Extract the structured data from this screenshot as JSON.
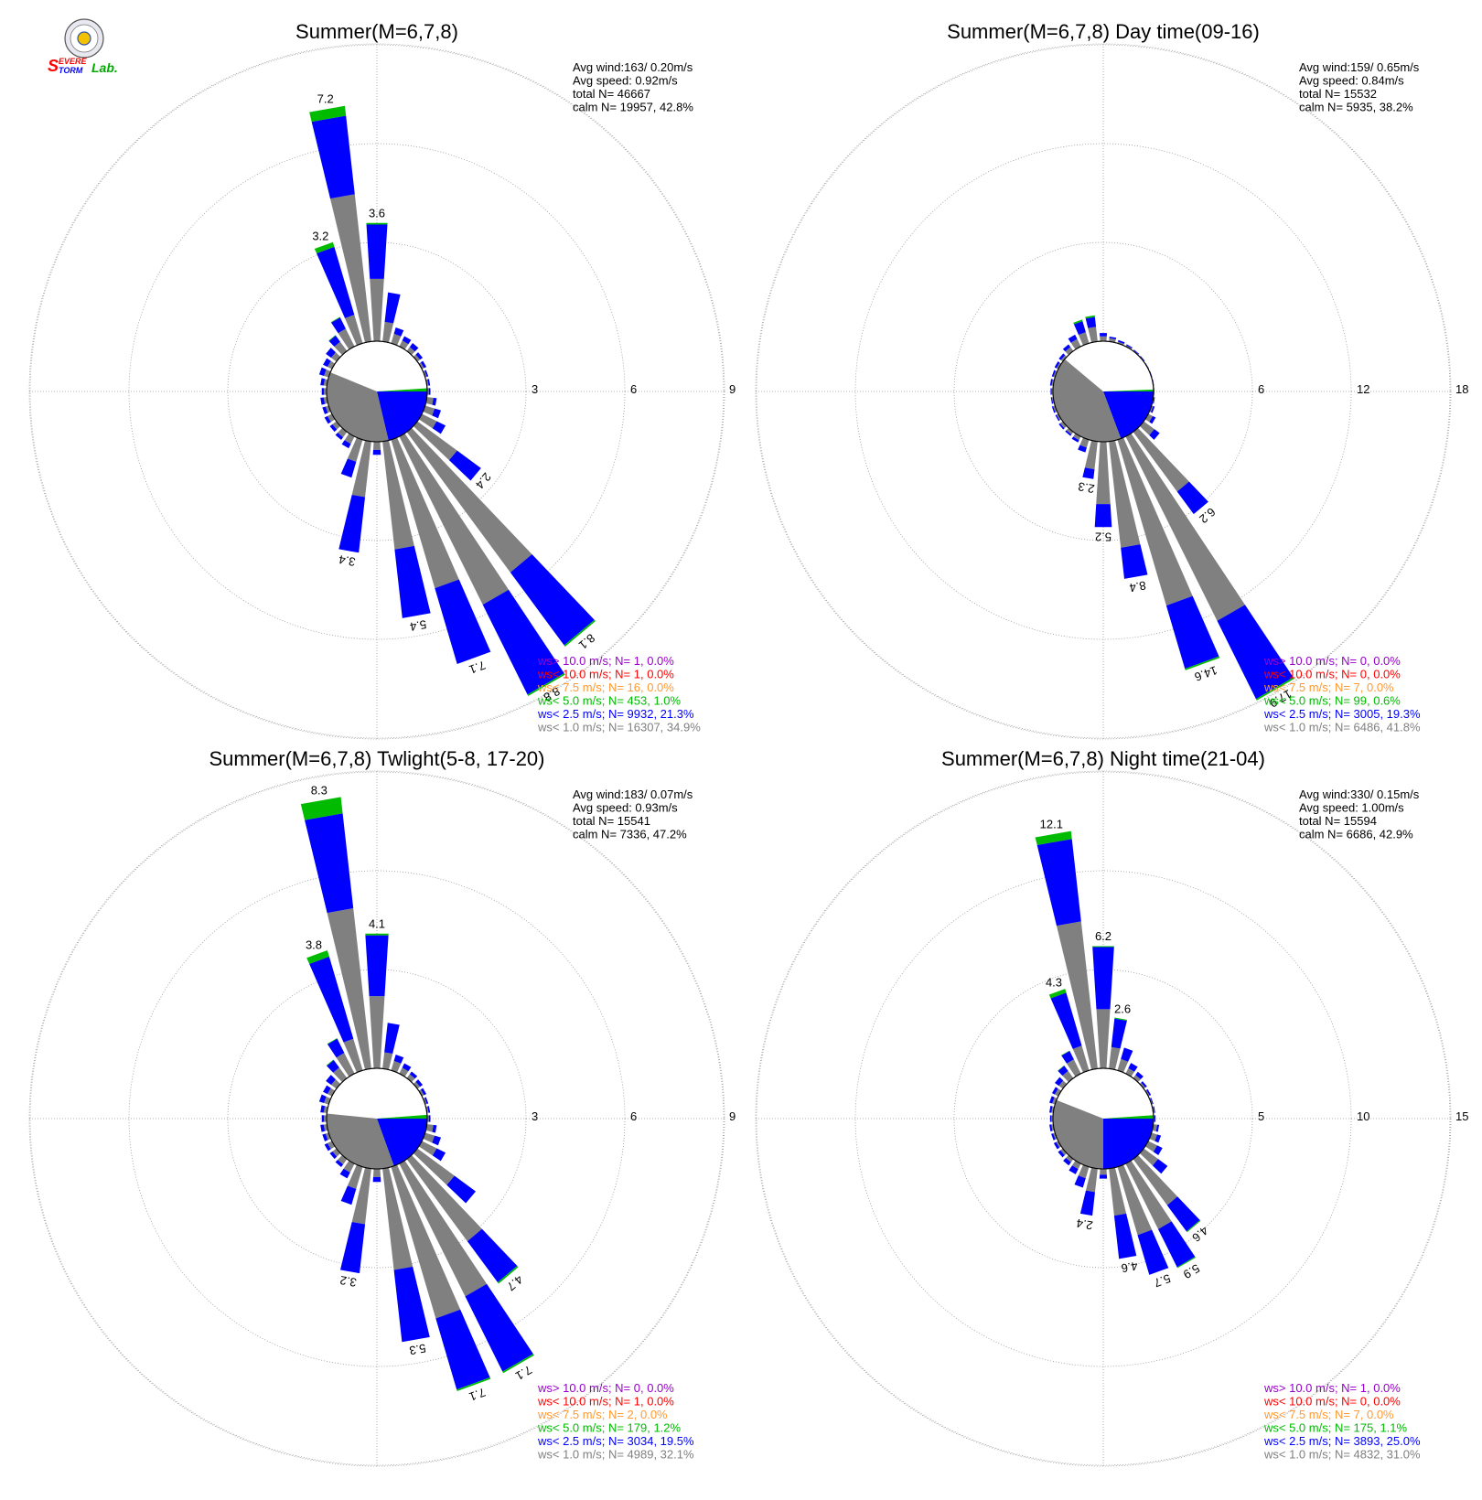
{
  "logo": {
    "text_s": "S",
    "text_severe": "EVERE",
    "text_storm": "TORM",
    "text_lab": "Lab."
  },
  "colors": {
    "calm_white": "#ffffff",
    "lt1": "#808080",
    "lt2_5": "#0000ff",
    "lt5": "#00bb00",
    "lt7_5": "#ff9933",
    "lt10": "#ff0000",
    "gt10": "#9900cc"
  },
  "chart_data": [
    {
      "type": "wind_rose",
      "title": "Summer(M=6,7,8)",
      "info": [
        "Avg wind:163/ 0.20m/s",
        "Avg speed: 0.92m/s",
        "total N=       46667",
        "calm N=  19957,  42.8%"
      ],
      "rings": [
        3,
        6,
        9
      ],
      "ring_labels": [
        "3",
        "6",
        "9"
      ],
      "calm_pct": 42.8,
      "calm_pie": {
        "lt1": 34.9,
        "lt2_5": 21.3,
        "lt5": 1.0
      },
      "directions_deg": [
        340,
        350,
        0,
        10,
        20,
        30,
        40,
        50,
        60,
        70,
        80,
        90,
        100,
        110,
        120,
        130,
        140,
        150,
        160,
        170,
        180,
        190,
        200,
        210,
        220,
        230,
        240,
        250,
        260,
        270,
        280,
        290,
        300,
        310,
        320,
        330
      ],
      "sector_totals": [
        3.2,
        7.2,
        3.6,
        1.5,
        0.5,
        0.35,
        0.3,
        0.2,
        0.15,
        0.1,
        0.1,
        0.1,
        0.3,
        0.5,
        0.8,
        2.4,
        8.1,
        8.8,
        7.1,
        5.4,
        0.4,
        3.4,
        1.2,
        0.4,
        0.3,
        0.25,
        0.25,
        0.2,
        0.2,
        0.15,
        0.2,
        0.3,
        0.3,
        0.4,
        0.6,
        1.0
      ],
      "sector_gray": [
        0.9,
        4.5,
        1.9,
        0.6,
        0.3,
        0.2,
        0.15,
        0.1,
        0.07,
        0.05,
        0.05,
        0.05,
        0.2,
        0.3,
        0.5,
        1.5,
        5.3,
        5.7,
        4.7,
        3.3,
        0.25,
        1.7,
        0.7,
        0.25,
        0.2,
        0.15,
        0.15,
        0.1,
        0.1,
        0.08,
        0.1,
        0.15,
        0.15,
        0.2,
        0.35,
        0.6
      ],
      "sector_green": [
        0.15,
        0.3,
        0.05,
        0,
        0,
        0,
        0,
        0,
        0,
        0,
        0,
        0,
        0,
        0,
        0,
        0,
        0.05,
        0.05,
        0,
        0,
        0,
        0,
        0,
        0,
        0,
        0,
        0,
        0,
        0,
        0,
        0,
        0,
        0,
        0,
        0.02,
        0.02
      ],
      "bar_labels": [
        {
          "i": 0,
          "text": "3.2"
        },
        {
          "i": 1,
          "text": "7.2"
        },
        {
          "i": 2,
          "text": "3.6"
        },
        {
          "i": 15,
          "text": "2.4"
        },
        {
          "i": 16,
          "text": "8.1"
        },
        {
          "i": 17,
          "text": "8.8"
        },
        {
          "i": 18,
          "text": "7.1"
        },
        {
          "i": 19,
          "text": "5.4"
        },
        {
          "i": 21,
          "text": "3.4"
        }
      ],
      "legend": [
        {
          "label": "ws> 10.0 m/s; N=",
          "n": "1,",
          "pct": "0.0%",
          "color": "gt10"
        },
        {
          "label": "ws< 10.0 m/s; N=",
          "n": "1,",
          "pct": "0.0%",
          "color": "lt10"
        },
        {
          "label": "ws<  7.5 m/s; N=",
          "n": "16,",
          "pct": "0.0%",
          "color": "lt7_5"
        },
        {
          "label": "ws<  5.0 m/s; N=",
          "n": "453,",
          "pct": "1.0%",
          "color": "lt5"
        },
        {
          "label": "ws<  2.5 m/s; N=",
          "n": "9932,",
          "pct": "21.3%",
          "color": "lt2_5"
        },
        {
          "label": "ws<  1.0 m/s; N=",
          "n": "16307,",
          "pct": "34.9%",
          "color": "lt1"
        }
      ]
    },
    {
      "type": "wind_rose",
      "title": "Summer(M=6,7,8) Day time(09-16)",
      "info": [
        "Avg wind:159/ 0.65m/s",
        "Avg speed: 0.84m/s",
        "total N=       15532",
        "calm N=  5935,  38.2%"
      ],
      "rings": [
        6,
        12,
        18
      ],
      "ring_labels": [
        "6",
        "12",
        "18"
      ],
      "calm_pct": 38.2,
      "calm_pie": {
        "lt1": 41.8,
        "lt2_5": 19.3,
        "lt5": 0.6
      },
      "directions_deg": [
        340,
        350,
        0,
        10,
        20,
        30,
        40,
        50,
        60,
        70,
        80,
        90,
        100,
        110,
        120,
        130,
        140,
        150,
        160,
        170,
        180,
        190,
        200,
        210,
        220,
        230,
        240,
        250,
        260,
        270,
        280,
        290,
        300,
        310,
        320,
        330
      ],
      "sector_totals": [
        1.5,
        1.6,
        0.5,
        0.3,
        0.2,
        0.15,
        0.1,
        0.08,
        0.05,
        0.05,
        0.05,
        0.05,
        0.1,
        0.2,
        0.5,
        1.2,
        6.2,
        17.9,
        14.6,
        8.4,
        5.2,
        2.3,
        0.8,
        0.4,
        0.3,
        0.3,
        0.2,
        0.2,
        0.15,
        0.15,
        0.2,
        0.2,
        0.25,
        0.3,
        0.5,
        0.8
      ],
      "sector_gray": [
        0.7,
        0.9,
        0.3,
        0.2,
        0.1,
        0.08,
        0.05,
        0.04,
        0.03,
        0.03,
        0.03,
        0.03,
        0.05,
        0.1,
        0.3,
        0.8,
        4.5,
        12.5,
        10.5,
        6.5,
        3.8,
        1.7,
        0.5,
        0.25,
        0.2,
        0.2,
        0.12,
        0.12,
        0.08,
        0.08,
        0.1,
        0.1,
        0.12,
        0.15,
        0.3,
        0.5
      ],
      "sector_green": [
        0.1,
        0.1,
        0,
        0,
        0,
        0,
        0,
        0,
        0,
        0,
        0,
        0,
        0,
        0,
        0,
        0,
        0,
        0.1,
        0.1,
        0,
        0,
        0,
        0,
        0,
        0,
        0,
        0,
        0,
        0,
        0,
        0,
        0,
        0,
        0,
        0,
        0
      ],
      "bar_labels": [
        {
          "i": 16,
          "text": "6.2"
        },
        {
          "i": 17,
          "text": "17.9"
        },
        {
          "i": 18,
          "text": "14.6"
        },
        {
          "i": 19,
          "text": "8.4"
        },
        {
          "i": 20,
          "text": "5.2"
        },
        {
          "i": 21,
          "text": "2.3"
        }
      ],
      "legend": [
        {
          "label": "ws> 10.0 m/s; N=",
          "n": "0,",
          "pct": "0.0%",
          "color": "gt10"
        },
        {
          "label": "ws< 10.0 m/s; N=",
          "n": "0,",
          "pct": "0.0%",
          "color": "lt10"
        },
        {
          "label": "ws<  7.5 m/s; N=",
          "n": "7,",
          "pct": "0.0%",
          "color": "lt7_5"
        },
        {
          "label": "ws<  5.0 m/s; N=",
          "n": "99,",
          "pct": "0.6%",
          "color": "lt5"
        },
        {
          "label": "ws<  2.5 m/s; N=",
          "n": "3005,",
          "pct": "19.3%",
          "color": "lt2_5"
        },
        {
          "label": "ws<  1.0 m/s; N=",
          "n": "6486,",
          "pct": "41.8%",
          "color": "lt1"
        }
      ]
    },
    {
      "type": "wind_rose",
      "title": "Summer(M=6,7,8) Twlight(5-8, 17-20)",
      "info": [
        "Avg wind:183/ 0.07m/s",
        "Avg speed: 0.93m/s",
        "total N=       15541",
        "calm N=  7336,  47.2%"
      ],
      "rings": [
        3,
        6,
        9
      ],
      "ring_labels": [
        "3",
        "6",
        "9"
      ],
      "calm_pct": 47.2,
      "calm_pie": {
        "lt1": 32.1,
        "lt2_5": 19.5,
        "lt5": 1.2
      },
      "directions_deg": [
        340,
        350,
        0,
        10,
        20,
        30,
        40,
        50,
        60,
        70,
        80,
        90,
        100,
        110,
        120,
        130,
        140,
        150,
        160,
        170,
        180,
        190,
        200,
        210,
        220,
        230,
        240,
        250,
        260,
        270,
        280,
        290,
        300,
        310,
        320,
        330
      ],
      "sector_totals": [
        3.8,
        8.3,
        4.1,
        1.4,
        0.5,
        0.35,
        0.25,
        0.2,
        0.15,
        0.1,
        0.1,
        0.1,
        0.3,
        0.5,
        0.8,
        2.2,
        4.7,
        7.1,
        7.1,
        5.3,
        0.4,
        3.2,
        1.2,
        0.5,
        0.3,
        0.25,
        0.25,
        0.2,
        0.2,
        0.15,
        0.2,
        0.3,
        0.3,
        0.4,
        0.7,
        1.2
      ],
      "sector_gray": [
        1.0,
        4.9,
        2.2,
        0.5,
        0.3,
        0.2,
        0.15,
        0.1,
        0.07,
        0.05,
        0.05,
        0.05,
        0.2,
        0.3,
        0.5,
        1.4,
        3.1,
        4.5,
        4.8,
        3.1,
        0.25,
        1.7,
        0.7,
        0.3,
        0.2,
        0.15,
        0.15,
        0.1,
        0.1,
        0.08,
        0.1,
        0.15,
        0.15,
        0.2,
        0.4,
        0.7
      ],
      "sector_green": [
        0.2,
        0.5,
        0.05,
        0,
        0,
        0,
        0,
        0,
        0,
        0,
        0,
        0,
        0,
        0,
        0,
        0,
        0.05,
        0.05,
        0.05,
        0,
        0,
        0,
        0,
        0,
        0,
        0,
        0,
        0,
        0,
        0,
        0,
        0,
        0,
        0,
        0.02,
        0.02
      ],
      "bar_labels": [
        {
          "i": 0,
          "text": "3.8"
        },
        {
          "i": 1,
          "text": "8.3"
        },
        {
          "i": 2,
          "text": "4.1"
        },
        {
          "i": 16,
          "text": "4.7"
        },
        {
          "i": 17,
          "text": "7.1"
        },
        {
          "i": 18,
          "text": "7.1"
        },
        {
          "i": 19,
          "text": "5.3"
        },
        {
          "i": 21,
          "text": "3.2"
        }
      ],
      "legend": [
        {
          "label": "ws> 10.0 m/s; N=",
          "n": "0,",
          "pct": "0.0%",
          "color": "gt10"
        },
        {
          "label": "ws< 10.0 m/s; N=",
          "n": "1,",
          "pct": "0.0%",
          "color": "lt10"
        },
        {
          "label": "ws<  7.5 m/s; N=",
          "n": "2,",
          "pct": "0.0%",
          "color": "lt7_5"
        },
        {
          "label": "ws<  5.0 m/s; N=",
          "n": "179,",
          "pct": "1.2%",
          "color": "lt5"
        },
        {
          "label": "ws<  2.5 m/s; N=",
          "n": "3034,",
          "pct": "19.5%",
          "color": "lt2_5"
        },
        {
          "label": "ws<  1.0 m/s; N=",
          "n": "4989,",
          "pct": "32.1%",
          "color": "lt1"
        }
      ]
    },
    {
      "type": "wind_rose",
      "title": "Summer(M=6,7,8) Night time(21-04)",
      "info": [
        "Avg wind:330/ 0.15m/s",
        "Avg speed: 1.00m/s",
        "total N=       15594",
        "calm N=  6686,  42.9%"
      ],
      "rings": [
        5,
        10,
        15
      ],
      "ring_labels": [
        "5",
        "10",
        "15"
      ],
      "calm_pct": 42.9,
      "calm_pie": {
        "lt1": 31.0,
        "lt2_5": 25.0,
        "lt5": 1.1
      },
      "directions_deg": [
        340,
        350,
        0,
        10,
        20,
        30,
        40,
        50,
        60,
        70,
        80,
        90,
        100,
        110,
        120,
        130,
        140,
        150,
        160,
        170,
        180,
        190,
        200,
        210,
        220,
        230,
        240,
        250,
        260,
        270,
        280,
        290,
        300,
        310,
        320,
        330
      ],
      "sector_totals": [
        4.3,
        12.1,
        6.2,
        2.6,
        1.2,
        0.6,
        0.4,
        0.2,
        0.15,
        0.1,
        0.1,
        0.1,
        0.3,
        0.5,
        0.8,
        1.5,
        4.6,
        5.9,
        5.7,
        4.6,
        0.5,
        2.4,
        1.1,
        0.6,
        0.4,
        0.3,
        0.25,
        0.2,
        0.2,
        0.15,
        0.2,
        0.3,
        0.35,
        0.5,
        0.8,
        1.3
      ],
      "sector_gray": [
        1.3,
        7.5,
        3.0,
        1.1,
        0.6,
        0.3,
        0.2,
        0.1,
        0.07,
        0.05,
        0.05,
        0.05,
        0.2,
        0.3,
        0.5,
        0.9,
        2.9,
        3.7,
        3.6,
        2.4,
        0.3,
        1.2,
        0.6,
        0.3,
        0.2,
        0.15,
        0.12,
        0.1,
        0.1,
        0.08,
        0.1,
        0.15,
        0.2,
        0.25,
        0.45,
        0.8
      ],
      "sector_green": [
        0.2,
        0.4,
        0.05,
        0.05,
        0,
        0,
        0,
        0,
        0,
        0,
        0,
        0,
        0,
        0,
        0,
        0,
        0.05,
        0.05,
        0,
        0,
        0,
        0,
        0,
        0,
        0,
        0,
        0,
        0,
        0,
        0,
        0,
        0,
        0,
        0,
        0.02,
        0.02
      ],
      "bar_labels": [
        {
          "i": 0,
          "text": "4.3"
        },
        {
          "i": 1,
          "text": "12.1"
        },
        {
          "i": 2,
          "text": "6.2"
        },
        {
          "i": 3,
          "text": "2.6"
        },
        {
          "i": 16,
          "text": "4.6"
        },
        {
          "i": 17,
          "text": "5.9"
        },
        {
          "i": 18,
          "text": "5.7"
        },
        {
          "i": 19,
          "text": "4.6"
        },
        {
          "i": 21,
          "text": "2.4"
        }
      ],
      "legend": [
        {
          "label": "ws> 10.0 m/s; N=",
          "n": "1,",
          "pct": "0.0%",
          "color": "gt10"
        },
        {
          "label": "ws< 10.0 m/s; N=",
          "n": "0,",
          "pct": "0.0%",
          "color": "lt10"
        },
        {
          "label": "ws<  7.5 m/s; N=",
          "n": "7,",
          "pct": "0.0%",
          "color": "lt7_5"
        },
        {
          "label": "ws<  5.0 m/s; N=",
          "n": "175,",
          "pct": "1.1%",
          "color": "lt5"
        },
        {
          "label": "ws<  2.5 m/s; N=",
          "n": "3893,",
          "pct": "25.0%",
          "color": "lt2_5"
        },
        {
          "label": "ws<  1.0 m/s; N=",
          "n": "4832,",
          "pct": "31.0%",
          "color": "lt1"
        }
      ]
    }
  ]
}
